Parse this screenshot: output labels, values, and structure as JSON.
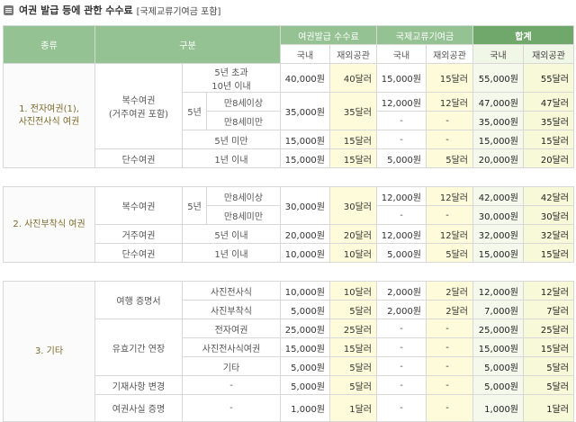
{
  "title": {
    "main": "여권 발급 등에 관한 수수료",
    "sub": "[국제교류기여금 포함]"
  },
  "header": {
    "col_type": "종류",
    "col_class": "구분",
    "col_fee": "여권발급 수수료",
    "col_intl": "국제교류기여금",
    "col_total": "합계",
    "domestic": "국내",
    "overseas": "재외공관"
  },
  "sections": {
    "s1": {
      "label_a": "1. 전자여권(1),",
      "label_b": "사진전사식 여권",
      "multi_a": "복수여권",
      "multi_b": "(거주여권 포함)",
      "five_year": "5년",
      "rows": [
        {
          "period_a": "5년 초과",
          "period_b": "10년 이내",
          "fee_d": "40,000원",
          "fee_o": "40달러",
          "intl_d": "15,000원",
          "intl_o": "15달러",
          "tot_d": "55,000원",
          "tot_o": "55달러"
        },
        {
          "period": "만8세이상",
          "fee_d": "35,000원",
          "fee_o": "35달러",
          "intl_d": "12,000원",
          "intl_o": "12달러",
          "tot_d": "47,000원",
          "tot_o": "47달러"
        },
        {
          "period": "만8세미만",
          "intl_d": "-",
          "intl_o": "-",
          "tot_d": "35,000원",
          "tot_o": "35달러"
        },
        {
          "period": "5년 미만",
          "fee_d": "15,000원",
          "fee_o": "15달러",
          "intl_d": "-",
          "intl_o": "-",
          "tot_d": "15,000원",
          "tot_o": "15달러"
        },
        {
          "cls": "단수여권",
          "period": "1년 이내",
          "fee_d": "15,000원",
          "fee_o": "15달러",
          "intl_d": "5,000원",
          "intl_o": "5달러",
          "tot_d": "20,000원",
          "tot_o": "20달러"
        }
      ]
    },
    "s2": {
      "label": "2. 사진부착식 여권",
      "multi": "복수여권",
      "five_year": "5년",
      "rows": [
        {
          "period": "만8세이상",
          "fee_d": "30,000원",
          "fee_o": "30달러",
          "intl_d": "12,000원",
          "intl_o": "12달러",
          "tot_d": "42,000원",
          "tot_o": "42달러"
        },
        {
          "period": "만8세미만",
          "intl_d": "-",
          "intl_o": "-",
          "tot_d": "30,000원",
          "tot_o": "30달러"
        },
        {
          "cls": "거주여권",
          "period": "5년 이내",
          "fee_d": "20,000원",
          "fee_o": "20달러",
          "intl_d": "12,000원",
          "intl_o": "12달러",
          "tot_d": "32,000원",
          "tot_o": "32달러"
        },
        {
          "cls": "단수여권",
          "period": "1년 이내",
          "fee_d": "10,000원",
          "fee_o": "10달러",
          "intl_d": "5,000원",
          "intl_o": "5달러",
          "tot_d": "15,000원",
          "tot_o": "15달러"
        }
      ]
    },
    "s3": {
      "label": "3. 기타",
      "travel": "여행 증명서",
      "extend": "유효기간 연장",
      "rows": [
        {
          "period": "사진전사식",
          "fee_d": "10,000원",
          "fee_o": "10달러",
          "intl_d": "2,000원",
          "intl_o": "2달러",
          "tot_d": "12,000원",
          "tot_o": "12달러"
        },
        {
          "period": "사진부착식",
          "fee_d": "5,000원",
          "fee_o": "5달러",
          "intl_d": "2,000원",
          "intl_o": "2달러",
          "tot_d": "7,000원",
          "tot_o": "7달러"
        },
        {
          "period": "전자여권",
          "fee_d": "25,000원",
          "fee_o": "25달러",
          "intl_d": "-",
          "intl_o": "-",
          "tot_d": "25,000원",
          "tot_o": "25달러"
        },
        {
          "period": "사진전사식여권",
          "fee_d": "15,000원",
          "fee_o": "15달러",
          "intl_d": "-",
          "intl_o": "-",
          "tot_d": "15,000원",
          "tot_o": "15달러"
        },
        {
          "period": "기타",
          "fee_d": "5,000원",
          "fee_o": "5달러",
          "intl_d": "-",
          "intl_o": "-",
          "tot_d": "5,000원",
          "tot_o": "5달러"
        },
        {
          "cls": "기재사항 변경",
          "period": "-",
          "fee_d": "5,000원",
          "fee_o": "5달러",
          "intl_d": "-",
          "intl_o": "-",
          "tot_d": "5,000원",
          "tot_o": "5달러"
        },
        {
          "cls": "여권사실 증명",
          "period": "-",
          "fee_d": "1,000원",
          "fee_o": "1달러",
          "intl_d": "-",
          "intl_o": "-",
          "tot_d": "1,000원",
          "tot_o": "1달러"
        }
      ]
    }
  }
}
